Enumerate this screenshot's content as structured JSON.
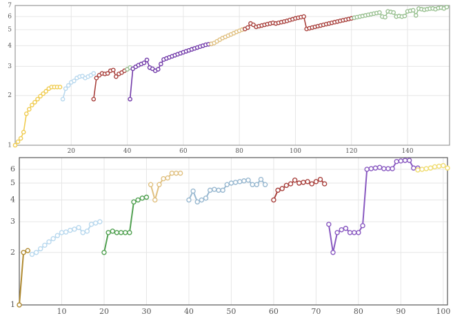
{
  "chart_data": [
    {
      "type": "line",
      "title": "",
      "xlabel": "",
      "ylabel": "",
      "xlim": [
        0,
        155
      ],
      "ylim": [
        1,
        7
      ],
      "y_scale": "log",
      "y_ticks": [
        1,
        2,
        3,
        4,
        5,
        6,
        7
      ],
      "x_ticks": [
        20,
        40,
        60,
        80,
        100,
        120,
        140
      ],
      "grid": true,
      "legend": "none",
      "series": [
        {
          "color": "#f0cc50",
          "x": [
            0,
            1,
            2,
            3,
            4,
            5,
            6,
            7,
            8,
            9,
            10,
            11,
            12,
            13,
            14,
            15,
            16
          ],
          "y": [
            1.0,
            1.05,
            1.1,
            1.2,
            1.55,
            1.65,
            1.75,
            1.82,
            1.9,
            1.98,
            2.05,
            2.12,
            2.2,
            2.25,
            2.25,
            2.25,
            2.25
          ]
        },
        {
          "color": "#b8d8ee",
          "x": [
            17,
            18,
            19,
            20,
            21,
            22,
            23,
            24,
            25,
            26,
            27,
            28
          ],
          "y": [
            1.9,
            2.2,
            2.3,
            2.4,
            2.45,
            2.55,
            2.6,
            2.62,
            2.55,
            2.6,
            2.65,
            2.72
          ]
        },
        {
          "color": "#a8403c",
          "x": [
            28,
            29,
            30,
            31,
            32,
            33,
            34,
            35,
            36,
            37,
            38,
            39,
            40
          ],
          "y": [
            1.9,
            2.55,
            2.65,
            2.72,
            2.7,
            2.72,
            2.82,
            2.85,
            2.6,
            2.7,
            2.75,
            2.82,
            2.88
          ]
        },
        {
          "color": "#98c090",
          "x": [
            40,
            41
          ],
          "y": [
            2.88,
            2.95
          ]
        },
        {
          "color": "#7038a8",
          "x": [
            41,
            42,
            43,
            44,
            45,
            46,
            47,
            48,
            49,
            50,
            51,
            52,
            53,
            54,
            55,
            56,
            57,
            58,
            59,
            60,
            61,
            62,
            63,
            64,
            65,
            66,
            67,
            68,
            69,
            70
          ],
          "y": [
            1.9,
            2.9,
            2.98,
            3.05,
            3.1,
            3.15,
            3.28,
            2.95,
            2.9,
            2.82,
            2.88,
            3.1,
            3.3,
            3.35,
            3.4,
            3.45,
            3.5,
            3.55,
            3.6,
            3.65,
            3.7,
            3.75,
            3.8,
            3.85,
            3.9,
            3.95,
            4.0,
            4.05,
            4.08,
            4.1
          ]
        },
        {
          "color": "#e0c080",
          "x": [
            70,
            71,
            72,
            73,
            74,
            75,
            76,
            77,
            78,
            79,
            80,
            81,
            82
          ],
          "y": [
            4.1,
            4.15,
            4.25,
            4.35,
            4.45,
            4.52,
            4.6,
            4.68,
            4.76,
            4.85,
            4.92,
            5.0,
            5.05
          ]
        },
        {
          "color": "#a8403c",
          "x": [
            82,
            83,
            84,
            85,
            86,
            87,
            88,
            89,
            90,
            91,
            92,
            93,
            94,
            95,
            96,
            97,
            98,
            99,
            100,
            101,
            102,
            103,
            104,
            105,
            106,
            107,
            108,
            109,
            110,
            111,
            112,
            113,
            114,
            115,
            116,
            117,
            118,
            119,
            120,
            121
          ],
          "y": [
            5.05,
            5.15,
            5.45,
            5.35,
            5.2,
            5.25,
            5.3,
            5.35,
            5.4,
            5.45,
            5.5,
            5.45,
            5.5,
            5.55,
            5.6,
            5.65,
            5.72,
            5.78,
            5.85,
            5.9,
            5.95,
            6.0,
            5.05,
            5.1,
            5.15,
            5.2,
            5.25,
            5.3,
            5.35,
            5.4,
            5.45,
            5.5,
            5.55,
            5.6,
            5.65,
            5.7,
            5.75,
            5.8,
            5.85,
            5.9
          ]
        },
        {
          "color": "#98c090",
          "x": [
            121,
            122,
            123,
            124,
            125,
            126,
            127,
            128,
            129,
            130,
            131,
            132,
            133,
            134,
            135,
            136,
            137,
            138,
            139,
            140,
            141,
            142,
            143,
            144,
            145,
            146,
            147,
            148,
            149,
            150,
            151,
            152,
            153,
            154
          ],
          "y": [
            5.9,
            5.95,
            6.0,
            6.05,
            6.1,
            6.15,
            6.2,
            6.25,
            6.3,
            6.35,
            6.0,
            5.95,
            6.45,
            6.4,
            6.35,
            6.0,
            6.05,
            6.0,
            6.05,
            6.45,
            6.5,
            6.55,
            6.1,
            6.7,
            6.65,
            6.6,
            6.65,
            6.7,
            6.72,
            6.65,
            6.75,
            6.8,
            6.72,
            6.85
          ]
        }
      ]
    },
    {
      "type": "line",
      "title": "",
      "xlabel": "",
      "ylabel": "",
      "xlim": [
        0,
        101
      ],
      "ylim": [
        1,
        7
      ],
      "y_scale": "log",
      "y_ticks": [
        1,
        2,
        3,
        4,
        5,
        6
      ],
      "x_ticks": [
        10,
        20,
        30,
        40,
        50,
        60,
        70,
        80,
        90,
        100
      ],
      "grid": true,
      "legend": "none",
      "series": [
        {
          "color": "#b08a30",
          "x": [
            0,
            1,
            2
          ],
          "y": [
            1.0,
            2.0,
            2.05
          ]
        },
        {
          "color": "#b8d8ee",
          "x": [
            3,
            4,
            5,
            6,
            7,
            8,
            9,
            10,
            11,
            12,
            13,
            14,
            15,
            16,
            17,
            18,
            19
          ],
          "y": [
            1.95,
            2.0,
            2.1,
            2.2,
            2.3,
            2.4,
            2.5,
            2.6,
            2.62,
            2.68,
            2.72,
            2.78,
            2.6,
            2.65,
            2.9,
            2.95,
            3.0
          ]
        },
        {
          "color": "#50a050",
          "x": [
            20,
            21,
            22,
            23,
            24,
            25,
            26,
            27,
            28,
            29,
            30
          ],
          "y": [
            2.0,
            2.6,
            2.65,
            2.6,
            2.6,
            2.6,
            2.6,
            3.9,
            4.0,
            4.1,
            4.15
          ]
        },
        {
          "color": "#e0c080",
          "x": [
            31,
            32,
            33,
            34,
            35,
            36,
            37,
            38
          ],
          "y": [
            4.9,
            4.0,
            4.9,
            5.3,
            5.35,
            5.7,
            5.7,
            5.7
          ]
        },
        {
          "color": "#98b8d0",
          "x": [
            40,
            41,
            42,
            43,
            44,
            45,
            46,
            47,
            48,
            49,
            50,
            51,
            52,
            53,
            54,
            55,
            56,
            57,
            58
          ],
          "y": [
            4.0,
            4.5,
            3.9,
            4.0,
            4.1,
            4.55,
            4.6,
            4.55,
            4.55,
            4.9,
            5.0,
            5.05,
            5.1,
            5.15,
            5.2,
            4.9,
            4.9,
            5.25,
            4.9
          ]
        },
        {
          "color": "#a8403c",
          "x": [
            60,
            61,
            62,
            63,
            64,
            65,
            66,
            67,
            68,
            69,
            70,
            71,
            72
          ],
          "y": [
            4.0,
            4.55,
            4.65,
            4.85,
            4.95,
            5.2,
            5.0,
            5.05,
            5.1,
            4.95,
            5.1,
            5.25,
            4.95
          ]
        },
        {
          "color": "#8858c0",
          "x": [
            73,
            74,
            75,
            76,
            77,
            78,
            79,
            80,
            81,
            82,
            83,
            84,
            85,
            86,
            87,
            88,
            89,
            90,
            91,
            92,
            93,
            94
          ],
          "y": [
            2.9,
            2.0,
            2.6,
            2.7,
            2.75,
            2.6,
            2.6,
            2.6,
            2.85,
            6.0,
            6.05,
            6.1,
            6.15,
            6.05,
            6.05,
            6.05,
            6.65,
            6.7,
            6.75,
            6.75,
            6.1,
            6.1
          ]
        },
        {
          "color": "#f0dc70",
          "x": [
            94,
            95,
            96,
            97,
            98,
            99,
            100,
            101
          ],
          "y": [
            5.95,
            6.0,
            6.05,
            6.1,
            6.2,
            6.25,
            6.3,
            6.1
          ]
        }
      ]
    }
  ]
}
